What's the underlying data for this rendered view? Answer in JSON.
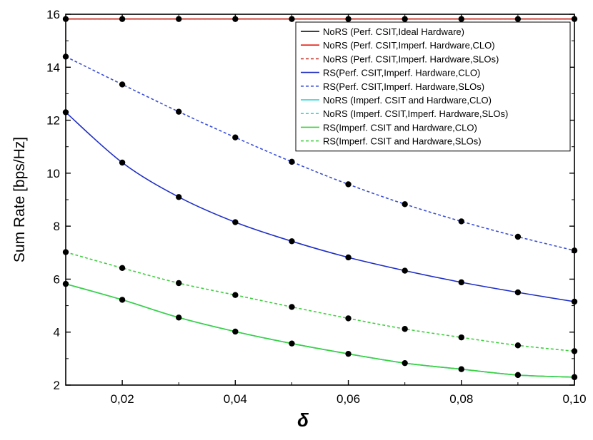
{
  "chart_data": {
    "type": "line",
    "title": "",
    "xlabel": "δ",
    "ylabel": "Sum Rate [bps/Hz]",
    "xlim": [
      0.01,
      0.1
    ],
    "ylim": [
      2,
      16
    ],
    "x_ticks": [
      0.02,
      0.04,
      0.06,
      0.08,
      0.1
    ],
    "x_tick_labels": [
      "0,02",
      "0,04",
      "0,06",
      "0,08",
      "0,10"
    ],
    "y_ticks": [
      2,
      4,
      6,
      8,
      10,
      12,
      14,
      16
    ],
    "y_tick_labels": [
      "2",
      "4",
      "6",
      "8",
      "10",
      "12",
      "14",
      "16"
    ],
    "grid": false,
    "legend_position": "top-right",
    "x": [
      0.01,
      0.02,
      0.03,
      0.04,
      0.05,
      0.06,
      0.07,
      0.08,
      0.09,
      0.1
    ],
    "series": [
      {
        "name": "NoRS (Perf. CSIT,Ideal Hardware)",
        "color": "#000000",
        "dash": "solid",
        "values": [
          15.82,
          15.82,
          15.82,
          15.82,
          15.82,
          15.82,
          15.82,
          15.82,
          15.82,
          15.82
        ]
      },
      {
        "name": "NoRS (Perf. CSIT,Imperf. Hardware,CLO)",
        "color": "#e8190f",
        "dash": "solid",
        "values": [
          15.82,
          15.82,
          15.82,
          15.82,
          15.82,
          15.82,
          15.82,
          15.82,
          15.82,
          15.82
        ]
      },
      {
        "name": "NoRS (Perf. CSIT,Imperf. Hardware,SLOs)",
        "color": "#c0392b",
        "dash": "dashed",
        "values": [
          15.82,
          15.82,
          15.82,
          15.82,
          15.82,
          15.82,
          15.82,
          15.82,
          15.82,
          15.82
        ]
      },
      {
        "name": "RS(Perf. CSIT,Imperf. Hardware,CLO)",
        "color": "#1f2fc4",
        "dash": "solid",
        "values": [
          12.3,
          10.4,
          9.1,
          8.15,
          7.43,
          6.82,
          6.32,
          5.88,
          5.5,
          5.15
        ]
      },
      {
        "name": "RS(Perf. CSIT,Imperf. Hardware,SLOs)",
        "color": "#3a4fd4",
        "dash": "dashed",
        "values": [
          14.4,
          13.35,
          12.32,
          11.35,
          10.43,
          9.58,
          8.83,
          8.18,
          7.6,
          7.08
        ]
      },
      {
        "name": "NoRS (Imperf. CSIT and Hardware,CLO)",
        "color": "#1ed3d3",
        "dash": "solid",
        "values": [
          5.82,
          5.22,
          4.55,
          4.02,
          3.57,
          3.18,
          2.83,
          2.6,
          2.38,
          2.3
        ]
      },
      {
        "name": "NoRS (Imperf. CSIT,Imperf. Hardware,SLOs)",
        "color": "#1ee0e0",
        "dash": "dashed",
        "values": [
          5.82,
          5.22,
          4.55,
          4.02,
          3.57,
          3.18,
          2.83,
          2.6,
          2.38,
          2.3
        ]
      },
      {
        "name": "RS(Imperf. CSIT and Hardware,CLO)",
        "color": "#3fcf3f",
        "dash": "solid",
        "values": [
          5.82,
          5.22,
          4.55,
          4.02,
          3.57,
          3.18,
          2.83,
          2.6,
          2.38,
          2.3
        ]
      },
      {
        "name": "RS(Imperf. CSIT and Hardware,SLOs)",
        "color": "#3fcf3f",
        "dash": "dashed",
        "values": [
          7.02,
          6.42,
          5.85,
          5.4,
          4.95,
          4.52,
          4.12,
          3.8,
          3.5,
          3.28
        ]
      }
    ],
    "marker_series": [
      {
        "values": [
          15.82,
          15.82,
          15.82,
          15.82,
          15.82,
          15.82,
          15.82,
          15.82,
          15.82,
          15.82
        ]
      },
      {
        "values": [
          12.3,
          10.4,
          9.1,
          8.15,
          7.43,
          6.82,
          6.32,
          5.88,
          5.5,
          5.15
        ]
      },
      {
        "values": [
          14.4,
          13.35,
          12.32,
          11.35,
          10.43,
          9.58,
          8.83,
          8.18,
          7.6,
          7.08
        ]
      },
      {
        "values": [
          5.82,
          5.22,
          4.55,
          4.02,
          3.57,
          3.18,
          2.83,
          2.6,
          2.38,
          2.3
        ]
      },
      {
        "values": [
          7.02,
          6.42,
          5.85,
          5.4,
          4.95,
          4.52,
          4.12,
          3.8,
          3.5,
          3.28
        ]
      }
    ]
  }
}
